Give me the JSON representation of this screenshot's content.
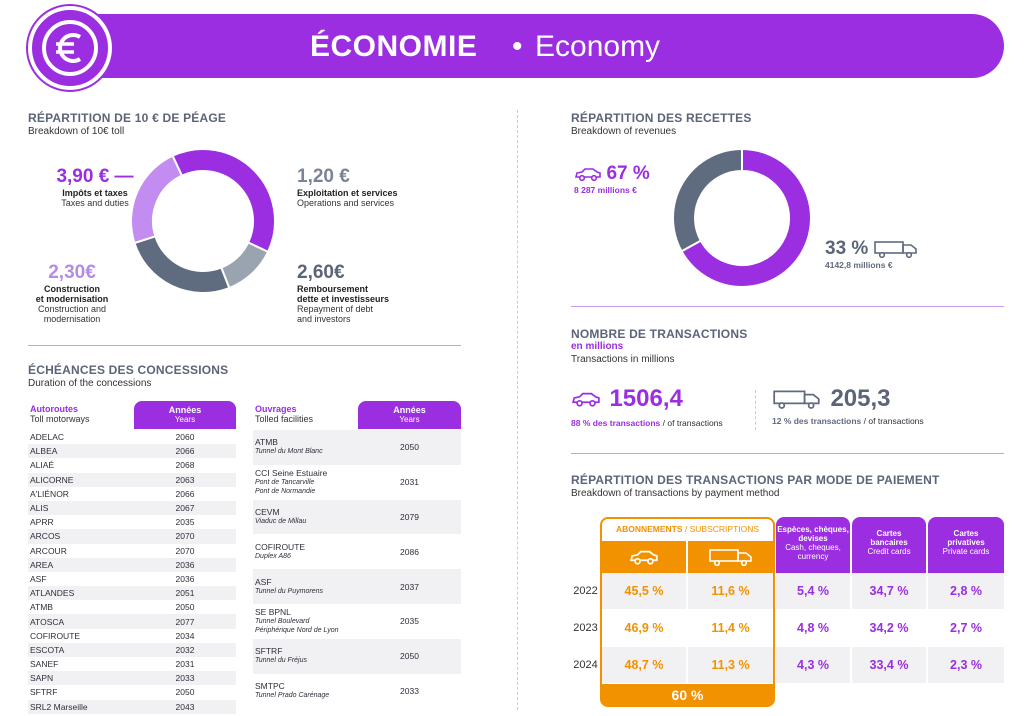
{
  "header": {
    "title": "ÉCONOMIE",
    "dot": "•",
    "subtitle": "Economy",
    "icon": "euro-icon"
  },
  "toll_breakdown": {
    "title": "RÉPARTITION DE 10 € DE PÉAGE",
    "subtitle": "Breakdown of 10€ toll",
    "items": [
      {
        "value": "3,90 €",
        "label_fr": "Impôts et taxes",
        "label_en": "Taxes and duties"
      },
      {
        "value": "1,20 €",
        "label_fr": "Exploitation et services",
        "label_en": "Operations and services"
      },
      {
        "value": "2,30€",
        "label_fr_1": "Construction",
        "label_fr_2": "et modernisation",
        "label_en_1": "Construction and",
        "label_en_2": "modernisation"
      },
      {
        "value": "2,60€",
        "label_fr_1": "Remboursement",
        "label_fr_2": "dette et investisseurs",
        "label_en_1": "Repayment of debt",
        "label_en_2": "and investors"
      }
    ]
  },
  "revenue_breakdown": {
    "title": "RÉPARTITION DES RECETTES",
    "subtitle": "Breakdown of revenues",
    "cars": {
      "pct": "67 %",
      "amount": "8 287 millions €",
      "icon": "car-icon"
    },
    "trucks": {
      "pct": "33 %",
      "amount": "4142,8 millions €",
      "icon": "truck-icon"
    }
  },
  "transactions": {
    "title": "NOMBRE DE TRANSACTIONS",
    "title2": "en millions",
    "subtitle": "Transactions in millions",
    "cars": {
      "value": "1506,4",
      "note_fr": "88 % des transactions",
      "note_en": " / of transactions"
    },
    "trucks": {
      "value": "205,3",
      "note_fr": "12 % des transactions",
      "note_en": " / of transactions"
    }
  },
  "concessions": {
    "title": "ÉCHÉANCES DES CONCESSIONS",
    "subtitle": "Duration of the concessions",
    "motorways": {
      "h1": "Autoroutes",
      "h2": "Toll motorways",
      "years_fr": "Années",
      "years_en": "Years",
      "rows": [
        [
          "ADELAC",
          "2060"
        ],
        [
          "ALBEA",
          "2066"
        ],
        [
          "ALIAÉ",
          "2068"
        ],
        [
          "ALICORNE",
          "2063"
        ],
        [
          "A'LIÉNOR",
          "2066"
        ],
        [
          "ALIS",
          "2067"
        ],
        [
          "APRR",
          "2035"
        ],
        [
          "ARCOS",
          "2070"
        ],
        [
          "ARCOUR",
          "2070"
        ],
        [
          "AREA",
          "2036"
        ],
        [
          "ASF",
          "2036"
        ],
        [
          "ATLANDES",
          "2051"
        ],
        [
          "ATMB",
          "2050"
        ],
        [
          "ATOSCA",
          "2077"
        ],
        [
          "COFIROUTE",
          "2034"
        ],
        [
          "ESCOTA",
          "2032"
        ],
        [
          "SANEF",
          "2031"
        ],
        [
          "SAPN",
          "2033"
        ],
        [
          "SFTRF",
          "2050"
        ],
        [
          "SRL2 Marseille",
          "2043"
        ]
      ]
    },
    "structures": {
      "h1": "Ouvrages",
      "h2": "Tolled facilities",
      "years_fr": "Années",
      "years_en": "Years",
      "rows": [
        {
          "name": "ATMB",
          "detail1": "Tunnel du Mont Blanc",
          "detail2": "",
          "year": "2050"
        },
        {
          "name": "CCI Seine Estuaire",
          "detail1": "Pont de Tancarville",
          "detail2": "Pont de Normandie",
          "year": "2031"
        },
        {
          "name": "CEVM",
          "detail1": "Viaduc de Millau",
          "detail2": "",
          "year": "2079"
        },
        {
          "name": "COFIROUTE",
          "detail1": "Duplex A86",
          "detail2": "",
          "year": "2086"
        },
        {
          "name": "ASF",
          "detail1": "Tunnel du Puymorens",
          "detail2": "",
          "year": "2037"
        },
        {
          "name": "SE BPNL",
          "detail1": "Tunnel Boulevard",
          "detail2": "Périphérique Nord de Lyon",
          "year": "2035"
        },
        {
          "name": "SFTRF",
          "detail1": "Tunnel du Fréjus",
          "detail2": "",
          "year": "2050"
        },
        {
          "name": "SMTPC",
          "detail1": "Tunnel Prado Carénage",
          "detail2": "",
          "year": "2033"
        }
      ]
    }
  },
  "payment": {
    "title": "RÉPARTITION DES TRANSACTIONS PAR MODE DE PAIEMENT",
    "subtitle": "Breakdown of transactions by payment method",
    "subs_fr": "ABONNEMENTS",
    "subs_sep": " / ",
    "subs_en": "SUBSCRIPTIONS",
    "cash_fr": "Espèces, chèques, devises",
    "cash_en": "Cash, cheques, currency",
    "cards_fr": "Cartes bancaires",
    "cards_en": "Credit cards",
    "priv_fr": "Cartes privatives",
    "priv_en": "Private cards",
    "total": "60 %",
    "rows": [
      {
        "year": "2022",
        "car": "45,5 %",
        "truck": "11,6 %",
        "cash": "5,4 %",
        "cards": "34,7 %",
        "priv": "2,8 %"
      },
      {
        "year": "2023",
        "car": "46,9 %",
        "truck": "11,4 %",
        "cash": "4,8 %",
        "cards": "34,2 %",
        "priv": "2,7 %"
      },
      {
        "year": "2024",
        "car": "48,7 %",
        "truck": "11,3 %",
        "cash": "4,3 %",
        "cards": "33,4 %",
        "priv": "2,3 %"
      }
    ]
  },
  "colors": {
    "purple": "#9a2ee0",
    "light_purple": "#c28cf0",
    "grey": "#9aa3b0",
    "dark_grey": "#5f6b7e",
    "orange": "#f39200"
  },
  "chart_data": [
    {
      "type": "pie",
      "title": "RÉPARTITION DE 10 € DE PÉAGE",
      "categories": [
        "Impôts et taxes",
        "Exploitation et services",
        "Remboursement dette et investisseurs",
        "Construction et modernisation"
      ],
      "values": [
        3.9,
        1.2,
        2.6,
        2.3
      ],
      "colors": [
        "#9a2ee0",
        "#9aa3b0",
        "#5f6b7e",
        "#c28cf0"
      ]
    },
    {
      "type": "pie",
      "title": "RÉPARTITION DES RECETTES",
      "categories": [
        "Cars",
        "Trucks"
      ],
      "values": [
        67,
        33
      ],
      "colors": [
        "#9a2ee0",
        "#5f6b7e"
      ]
    }
  ]
}
